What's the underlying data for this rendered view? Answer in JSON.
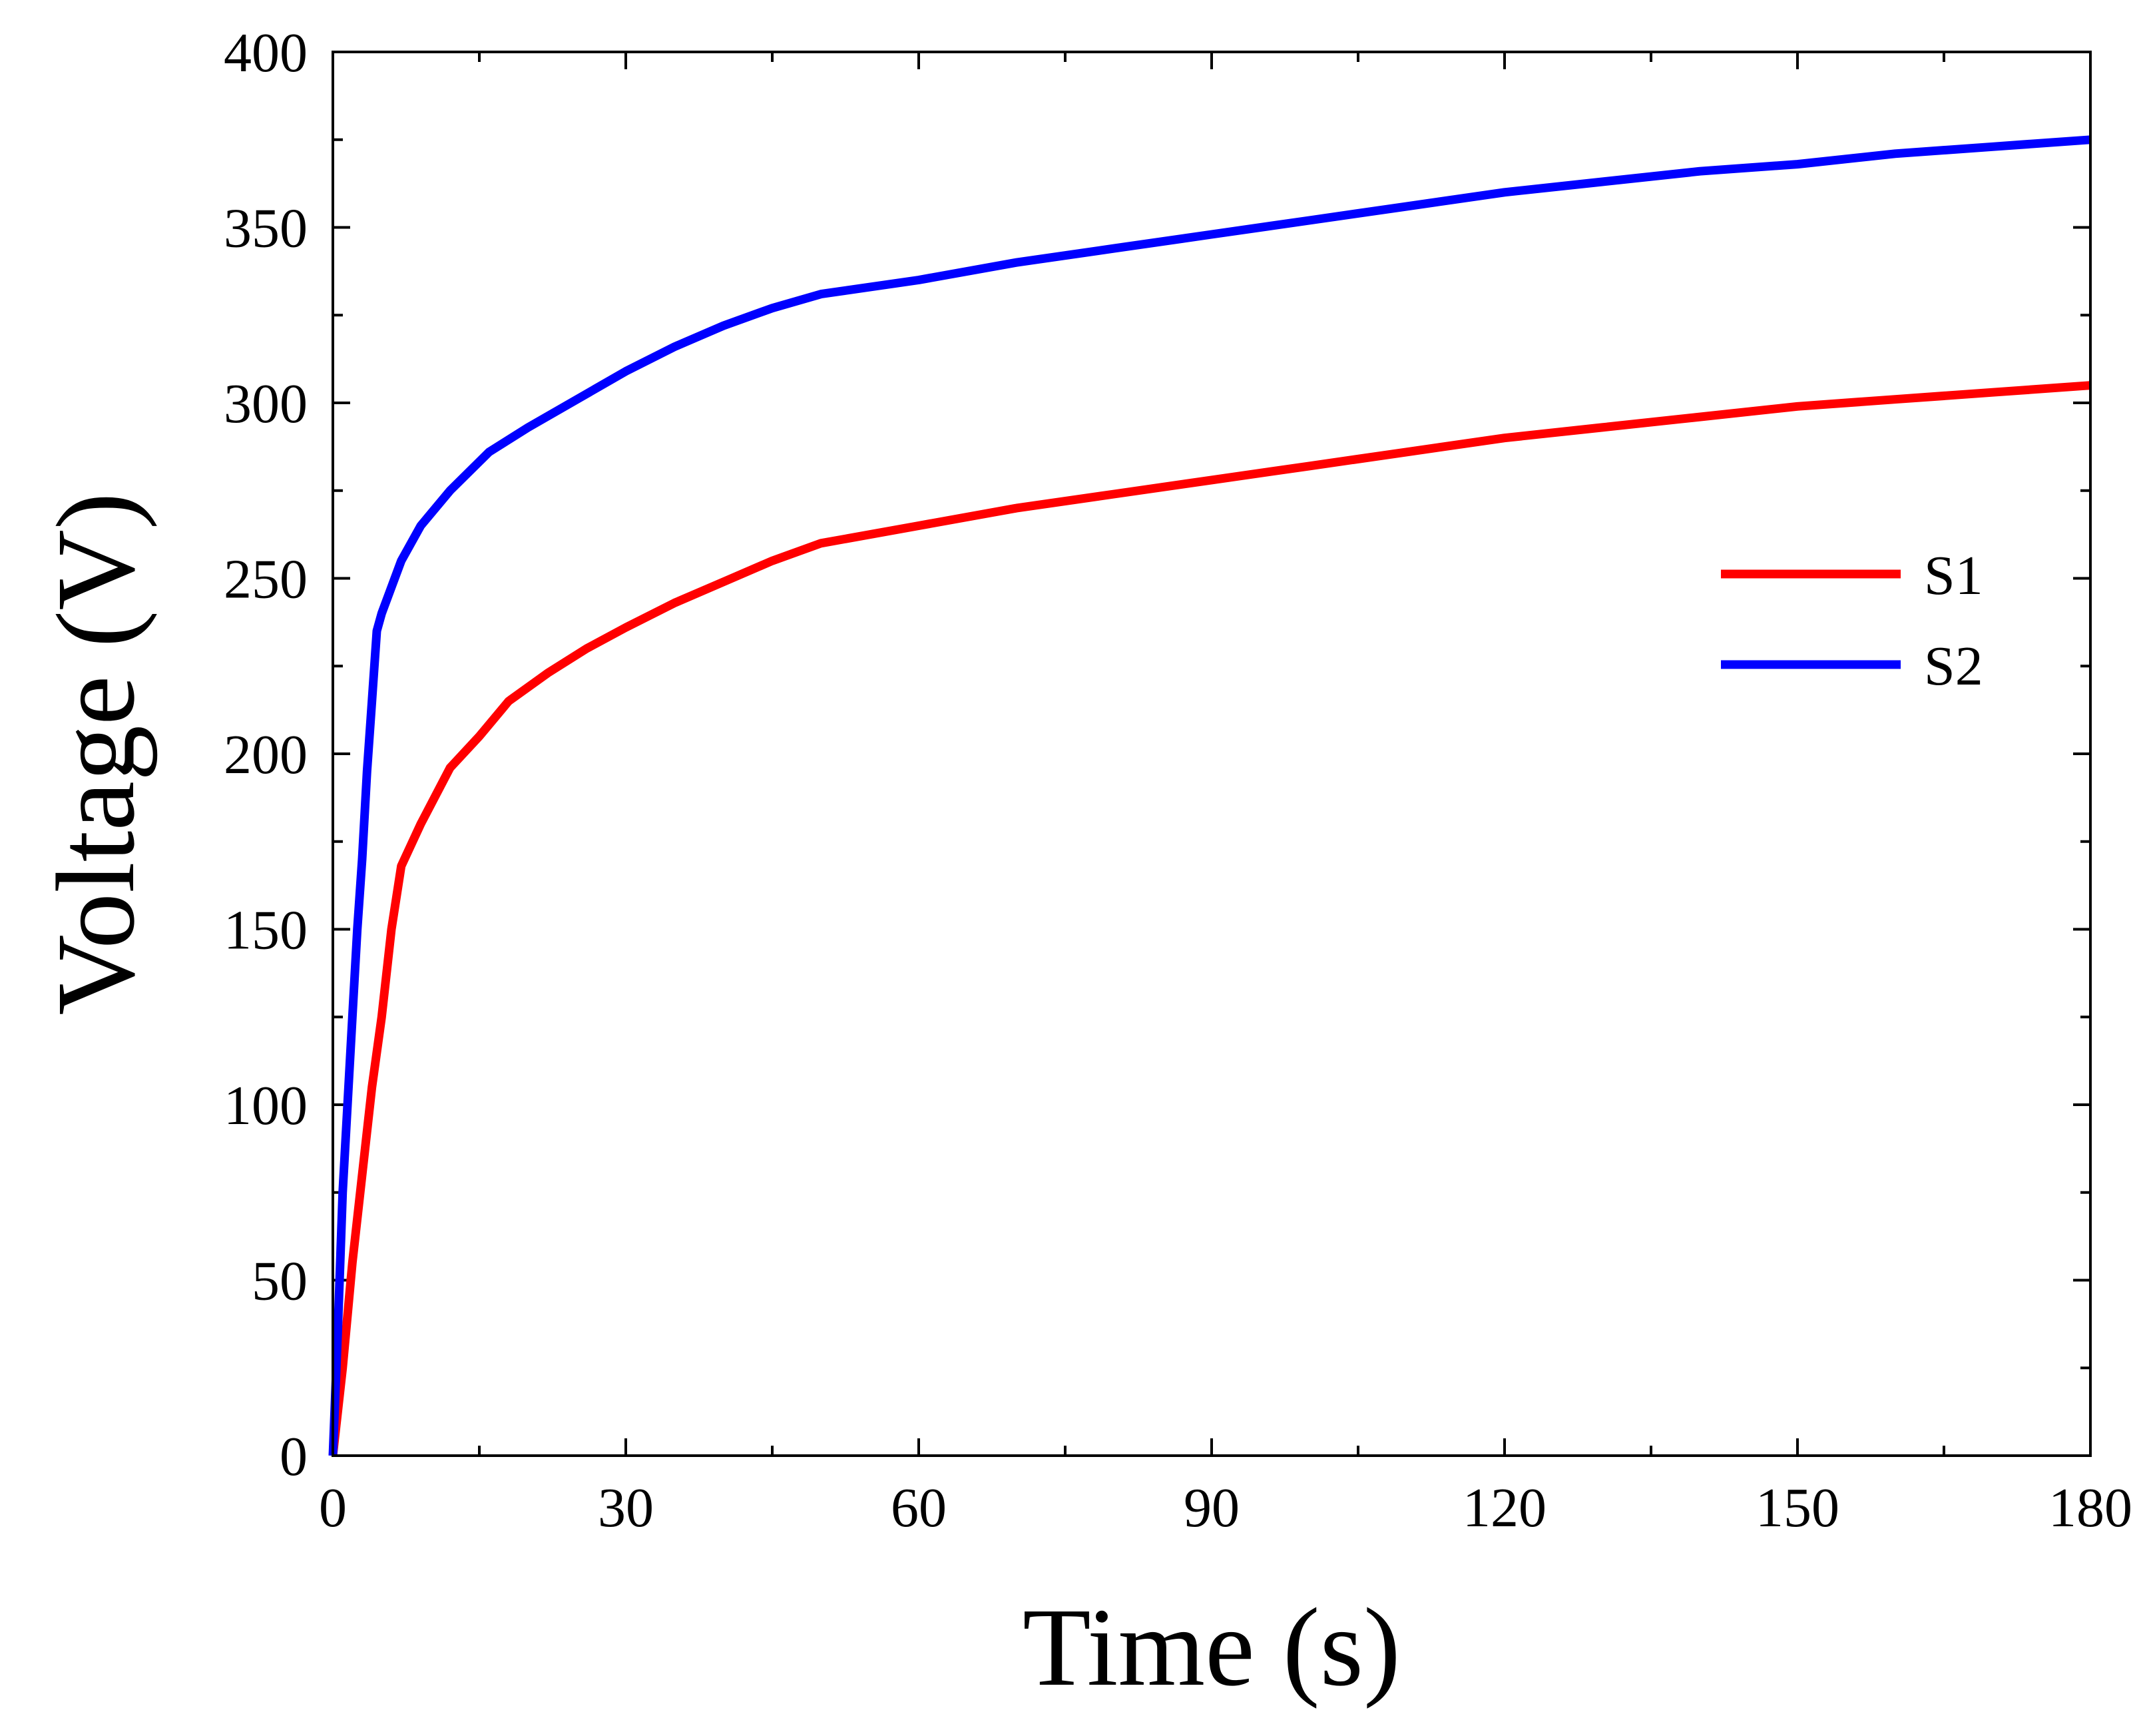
{
  "chart_data": {
    "type": "line",
    "title": "",
    "xlabel": "Time (s)",
    "ylabel": "Voltage (V)",
    "xlim": [
      0,
      180
    ],
    "ylim": [
      0,
      400
    ],
    "xticks": [
      0,
      30,
      60,
      90,
      120,
      150,
      180
    ],
    "xtick_labels": [
      "0",
      "30",
      "60",
      "90",
      "120",
      "150",
      "180"
    ],
    "yticks": [
      0,
      50,
      100,
      150,
      200,
      250,
      300,
      350,
      400
    ],
    "ytick_labels": [
      "0",
      "50",
      "100",
      "150",
      "200",
      "250",
      "300",
      "350",
      "400"
    ],
    "grid": false,
    "legend_position": "right",
    "series": [
      {
        "name": "S1",
        "color": "#ff0000",
        "x": [
          0,
          1,
          2,
          3,
          4,
          5,
          6,
          7,
          9,
          12,
          15,
          18,
          22,
          26,
          30,
          35,
          40,
          45,
          50,
          60,
          70,
          80,
          90,
          100,
          110,
          120,
          130,
          140,
          150,
          160,
          170,
          180
        ],
        "y": [
          0,
          25,
          55,
          80,
          105,
          125,
          150,
          168,
          180,
          196,
          205,
          215,
          223,
          230,
          236,
          243,
          249,
          255,
          260,
          265,
          270,
          274,
          278,
          282,
          286,
          290,
          293,
          296,
          299,
          301,
          303,
          305
        ]
      },
      {
        "name": "S2",
        "color": "#0000ff",
        "x": [
          0,
          0.5,
          1,
          1.5,
          2,
          2.5,
          3,
          3.5,
          4,
          4.5,
          5,
          7,
          9,
          12,
          16,
          20,
          25,
          30,
          35,
          40,
          45,
          50,
          60,
          70,
          80,
          90,
          100,
          110,
          120,
          130,
          140,
          150,
          160,
          170,
          180
        ],
        "y": [
          0,
          35,
          75,
          100,
          125,
          150,
          170,
          195,
          215,
          235,
          240,
          255,
          265,
          275,
          286,
          293,
          301,
          309,
          316,
          322,
          327,
          331,
          335,
          340,
          344,
          348,
          352,
          356,
          360,
          363,
          366,
          368,
          371,
          373,
          375
        ]
      }
    ]
  }
}
